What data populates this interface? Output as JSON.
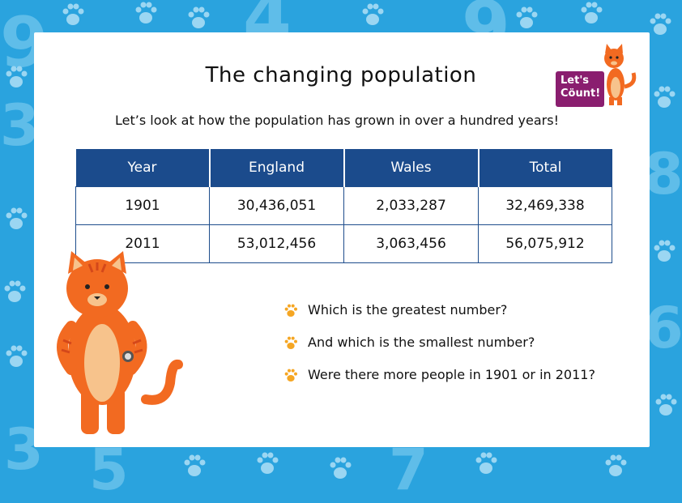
{
  "title": "The changing population",
  "subtitle": "Let’s look at how the population has grown in over a hundred years!",
  "logo": {
    "line1": "Let's",
    "line2": "Cöunt!"
  },
  "table": {
    "headers": [
      "Year",
      "England",
      "Wales",
      "Total"
    ],
    "rows": [
      [
        "1901",
        "30,436,051",
        "2,033,287",
        "32,469,338"
      ],
      [
        "2011",
        "53,012,456",
        "3,063,456",
        "56,075,912"
      ]
    ]
  },
  "questions": [
    "Which is the greatest number?",
    "And which is the smallest number?",
    "Were there more people in 1901 or in 2011?"
  ],
  "colors": {
    "background": "#2aa3de",
    "table_header": "#1b4b8c",
    "logo": "#8a1e6f",
    "cat": "#f26a21",
    "paw_bullet": "#f5a623"
  },
  "icons": [
    "paw-bullet-icon",
    "cat-mascot",
    "paw-background-icon"
  ]
}
